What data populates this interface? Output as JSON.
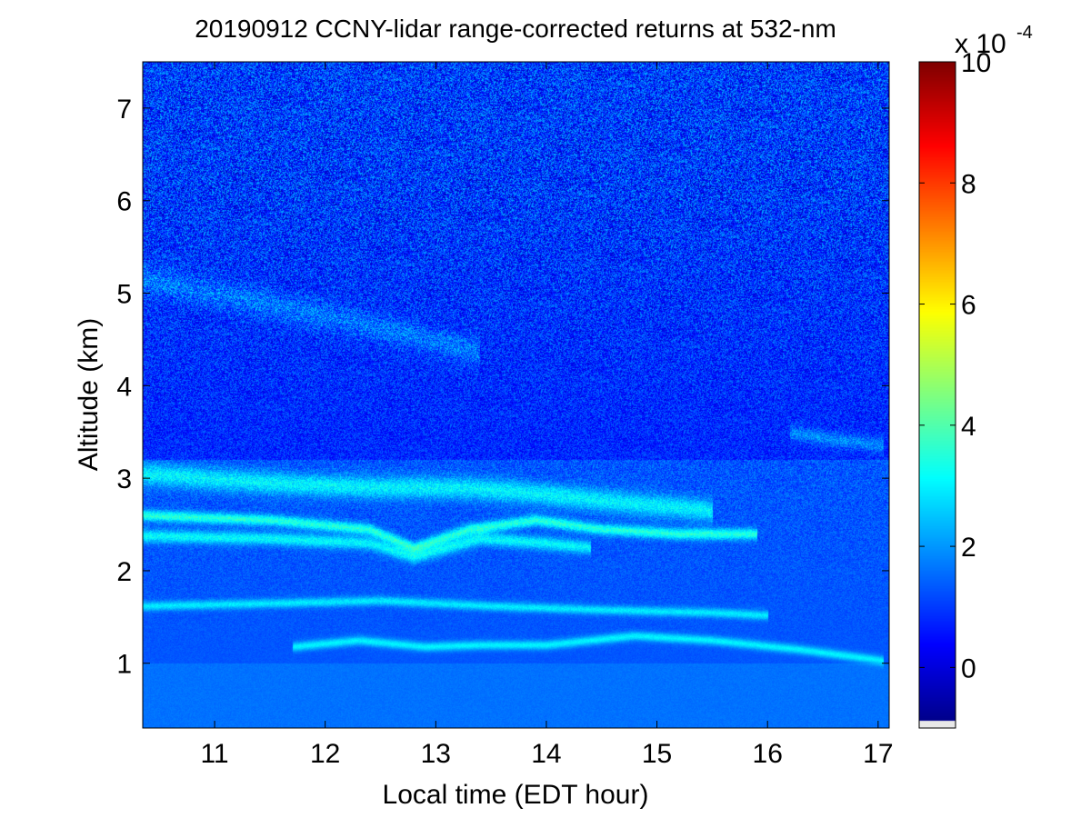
{
  "chart_data": {
    "type": "heatmap",
    "title": "20190912 CCNY-lidar range-corrected returns at 532-nm",
    "xlabel": "Local time (EDT hour)",
    "ylabel": "Altitude (km)",
    "xlim": [
      10.35,
      17.1
    ],
    "ylim": [
      0.3,
      7.5
    ],
    "x_ticks": [
      11,
      12,
      13,
      14,
      15,
      16,
      17
    ],
    "y_ticks": [
      1,
      2,
      3,
      4,
      5,
      6,
      7
    ],
    "colorbar": {
      "range": [
        -1,
        10
      ],
      "ticks": [
        0,
        2,
        4,
        6,
        8,
        10
      ],
      "multiplier": "x 10",
      "exponent": "-4",
      "colormap": "jet"
    },
    "field": {
      "background_value": 1.3,
      "noise_amplitude": 0.9,
      "upper_background_value": 0.8,
      "layers": [
        {
          "name": "aerosol-layer-top",
          "points": [
            [
              10.35,
              3.05
            ],
            [
              11.5,
              2.95
            ],
            [
              12.5,
              2.9
            ],
            [
              13.2,
              2.9
            ],
            [
              13.8,
              2.85
            ],
            [
              14.6,
              2.75
            ],
            [
              15.5,
              2.65
            ]
          ],
          "value": 3.0,
          "thickness": 0.12
        },
        {
          "name": "residual-layer-upper",
          "points": [
            [
              10.35,
              2.6
            ],
            [
              11.5,
              2.55
            ],
            [
              12.4,
              2.45
            ],
            [
              12.8,
              2.25
            ],
            [
              13.3,
              2.45
            ],
            [
              13.9,
              2.55
            ],
            [
              14.5,
              2.45
            ],
            [
              15.2,
              2.4
            ],
            [
              15.9,
              2.4
            ]
          ],
          "value": 3.5,
          "thickness": 0.06
        },
        {
          "name": "residual-layer-lower",
          "points": [
            [
              10.35,
              2.38
            ],
            [
              11.5,
              2.35
            ],
            [
              12.4,
              2.3
            ],
            [
              12.8,
              2.15
            ],
            [
              13.4,
              2.35
            ],
            [
              14.0,
              2.3
            ],
            [
              14.4,
              2.25
            ]
          ],
          "value": 3.1,
          "thickness": 0.07
        },
        {
          "name": "layer-1p6km",
          "points": [
            [
              10.35,
              1.62
            ],
            [
              11.5,
              1.65
            ],
            [
              12.5,
              1.68
            ],
            [
              13.5,
              1.62
            ],
            [
              14.5,
              1.58
            ],
            [
              15.5,
              1.55
            ],
            [
              16.0,
              1.52
            ]
          ],
          "value": 2.9,
          "thickness": 0.05
        },
        {
          "name": "boundary-layer-top",
          "points": [
            [
              11.7,
              1.18
            ],
            [
              12.3,
              1.25
            ],
            [
              12.9,
              1.18
            ],
            [
              13.4,
              1.2
            ],
            [
              14.0,
              1.2
            ],
            [
              14.8,
              1.3
            ],
            [
              15.5,
              1.25
            ],
            [
              16.3,
              1.15
            ],
            [
              17.05,
              1.03
            ]
          ],
          "value": 3.0,
          "thickness": 0.05
        },
        {
          "name": "elevated-layer-5km",
          "points": [
            [
              10.35,
              5.15
            ],
            [
              11.2,
              4.95
            ],
            [
              12.0,
              4.75
            ],
            [
              12.8,
              4.55
            ],
            [
              13.4,
              4.35
            ]
          ],
          "value": 2.1,
          "thickness": 0.15
        },
        {
          "name": "plume-3p4km",
          "points": [
            [
              16.2,
              3.5
            ],
            [
              16.6,
              3.42
            ],
            [
              17.05,
              3.35
            ]
          ],
          "value": 2.4,
          "thickness": 0.08
        }
      ]
    }
  }
}
